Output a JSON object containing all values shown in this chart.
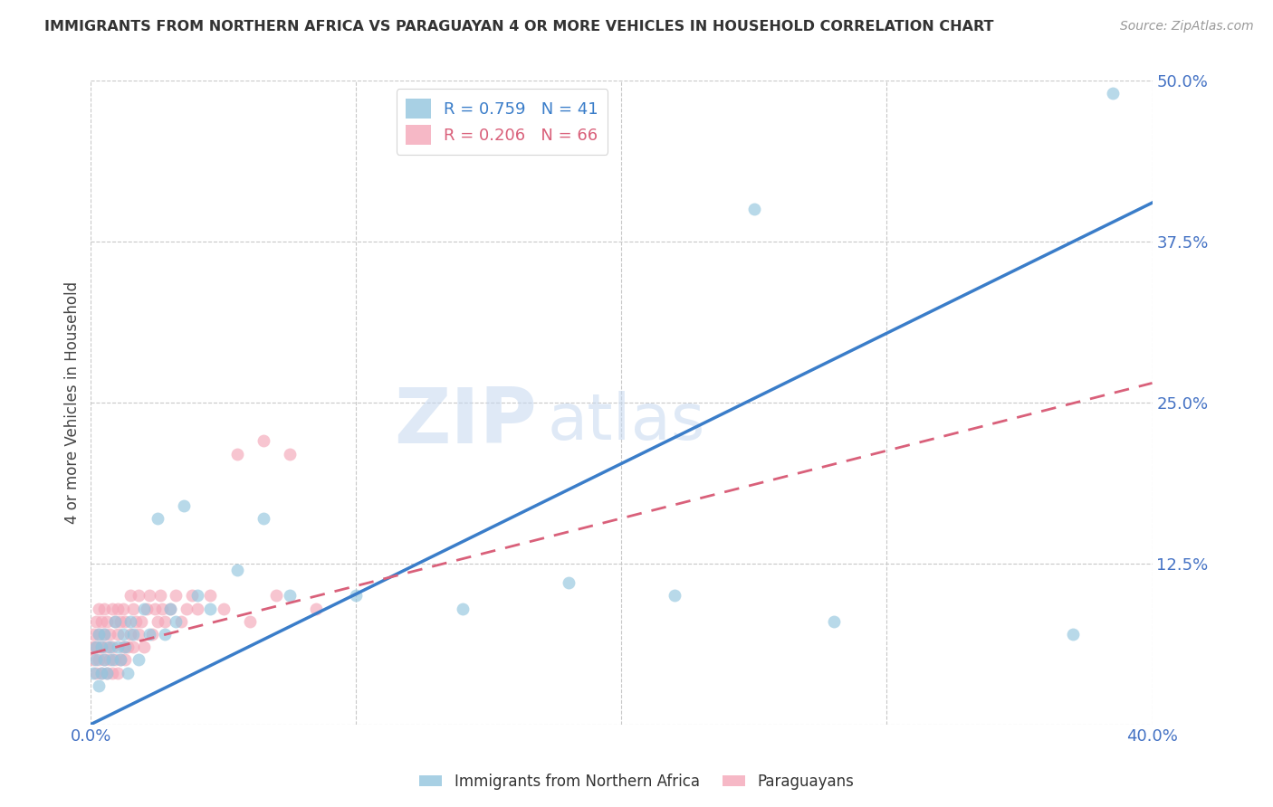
{
  "title": "IMMIGRANTS FROM NORTHERN AFRICA VS PARAGUAYAN 4 OR MORE VEHICLES IN HOUSEHOLD CORRELATION CHART",
  "source": "Source: ZipAtlas.com",
  "ylabel": "4 or more Vehicles in Household",
  "watermark_zip": "ZIP",
  "watermark_atlas": "atlas",
  "xlim": [
    0.0,
    0.4
  ],
  "ylim": [
    0.0,
    0.5
  ],
  "yticks": [
    0.0,
    0.125,
    0.25,
    0.375,
    0.5
  ],
  "xticks": [
    0.0,
    0.1,
    0.2,
    0.3,
    0.4
  ],
  "blue_R": 0.759,
  "blue_N": 41,
  "pink_R": 0.206,
  "pink_N": 66,
  "blue_color": "#92c5de",
  "pink_color": "#f4a6b8",
  "blue_line_color": "#3a7dc9",
  "pink_line_color": "#d9607a",
  "axis_label_color": "#4472c4",
  "title_color": "#333333",
  "grid_color": "#c8c8c8",
  "background_color": "#ffffff",
  "blue_line_x0": 0.0,
  "blue_line_y0": 0.0,
  "blue_line_x1": 0.4,
  "blue_line_y1": 0.405,
  "pink_line_x0": 0.0,
  "pink_line_y0": 0.055,
  "pink_line_x1": 0.4,
  "pink_line_y1": 0.265,
  "blue_scatter_x": [
    0.001,
    0.002,
    0.002,
    0.003,
    0.003,
    0.004,
    0.004,
    0.005,
    0.005,
    0.006,
    0.007,
    0.008,
    0.009,
    0.01,
    0.011,
    0.012,
    0.013,
    0.014,
    0.015,
    0.016,
    0.018,
    0.02,
    0.022,
    0.025,
    0.028,
    0.03,
    0.032,
    0.035,
    0.04,
    0.045,
    0.055,
    0.065,
    0.075,
    0.1,
    0.14,
    0.18,
    0.22,
    0.25,
    0.28,
    0.37,
    0.385
  ],
  "blue_scatter_y": [
    0.04,
    0.05,
    0.06,
    0.03,
    0.07,
    0.04,
    0.06,
    0.05,
    0.07,
    0.04,
    0.06,
    0.05,
    0.08,
    0.06,
    0.05,
    0.07,
    0.06,
    0.04,
    0.08,
    0.07,
    0.05,
    0.09,
    0.07,
    0.16,
    0.07,
    0.09,
    0.08,
    0.17,
    0.1,
    0.09,
    0.12,
    0.16,
    0.1,
    0.1,
    0.09,
    0.11,
    0.1,
    0.4,
    0.08,
    0.07,
    0.49
  ],
  "pink_scatter_x": [
    0.001,
    0.001,
    0.001,
    0.002,
    0.002,
    0.002,
    0.003,
    0.003,
    0.003,
    0.004,
    0.004,
    0.004,
    0.005,
    0.005,
    0.005,
    0.006,
    0.006,
    0.006,
    0.007,
    0.007,
    0.008,
    0.008,
    0.008,
    0.009,
    0.009,
    0.01,
    0.01,
    0.01,
    0.011,
    0.011,
    0.012,
    0.012,
    0.013,
    0.013,
    0.014,
    0.015,
    0.015,
    0.016,
    0.016,
    0.017,
    0.018,
    0.018,
    0.019,
    0.02,
    0.021,
    0.022,
    0.023,
    0.024,
    0.025,
    0.026,
    0.027,
    0.028,
    0.03,
    0.032,
    0.034,
    0.036,
    0.038,
    0.04,
    0.045,
    0.05,
    0.055,
    0.06,
    0.065,
    0.07,
    0.075,
    0.085
  ],
  "pink_scatter_y": [
    0.05,
    0.06,
    0.07,
    0.04,
    0.06,
    0.08,
    0.05,
    0.07,
    0.09,
    0.04,
    0.06,
    0.08,
    0.05,
    0.07,
    0.09,
    0.04,
    0.06,
    0.08,
    0.05,
    0.07,
    0.04,
    0.06,
    0.09,
    0.05,
    0.08,
    0.04,
    0.07,
    0.09,
    0.05,
    0.08,
    0.06,
    0.09,
    0.05,
    0.08,
    0.06,
    0.07,
    0.1,
    0.06,
    0.09,
    0.08,
    0.07,
    0.1,
    0.08,
    0.06,
    0.09,
    0.1,
    0.07,
    0.09,
    0.08,
    0.1,
    0.09,
    0.08,
    0.09,
    0.1,
    0.08,
    0.09,
    0.1,
    0.09,
    0.1,
    0.09,
    0.21,
    0.08,
    0.22,
    0.1,
    0.21,
    0.09
  ]
}
